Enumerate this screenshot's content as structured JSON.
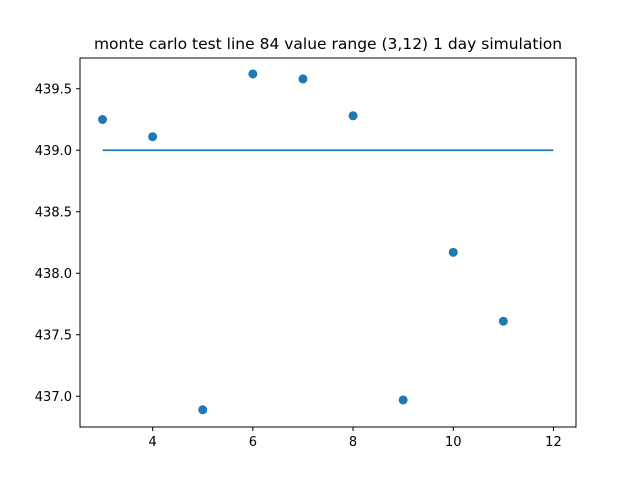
{
  "chart_data": {
    "type": "scatter",
    "title": "monte carlo test line 84 value range (3,12) 1 day simulation",
    "xlabel": "",
    "ylabel": "",
    "xlim": [
      2.55,
      12.45
    ],
    "ylim": [
      436.75,
      439.75
    ],
    "x_ticks": [
      "4",
      "6",
      "8",
      "10",
      "12"
    ],
    "y_ticks": [
      "437.0",
      "437.5",
      "438.0",
      "438.5",
      "439.0",
      "439.5"
    ],
    "grid": false,
    "legend": "none",
    "color": "#1f77b4",
    "series": [
      {
        "kind": "scatter",
        "x": [
          3,
          4,
          5,
          6,
          7,
          8,
          9,
          10,
          11
        ],
        "y": [
          439.25,
          439.11,
          436.89,
          439.62,
          439.58,
          439.28,
          436.97,
          438.17,
          437.61
        ]
      },
      {
        "kind": "line",
        "x": [
          3,
          12
        ],
        "y": [
          439.0,
          439.0
        ]
      }
    ]
  }
}
